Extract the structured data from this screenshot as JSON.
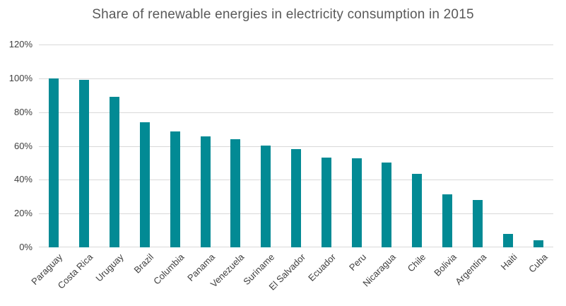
{
  "chart_data": {
    "type": "bar",
    "title": "Share of renewable energies in electricity consumption in 2015",
    "categories": [
      "Paraguay",
      "Costa Rica",
      "Uruguay",
      "Brazil",
      "Columbia",
      "Panama",
      "Venezuela",
      "Suriname",
      "El Salvador",
      "Ecuador",
      "Peru",
      "Nicaragua",
      "Chile",
      "Bolivia",
      "Argentina",
      "Haiti",
      "Cuba"
    ],
    "values": [
      100,
      99,
      89,
      74,
      68.5,
      65.5,
      64,
      60,
      58,
      53,
      52.5,
      50,
      43.5,
      31.5,
      28,
      8,
      4
    ],
    "xlabel": "",
    "ylabel": "",
    "ylim": [
      0,
      120
    ],
    "ytick_step": 20,
    "yticks": [
      "0%",
      "20%",
      "40%",
      "60%",
      "80%",
      "100%",
      "120%"
    ],
    "grid": true,
    "legend": false
  },
  "colors": {
    "bar": "#028A94",
    "gridline": "#D9D9D9",
    "title_text": "#595959",
    "axis_text": "#404040",
    "background": "#FFFFFF"
  }
}
